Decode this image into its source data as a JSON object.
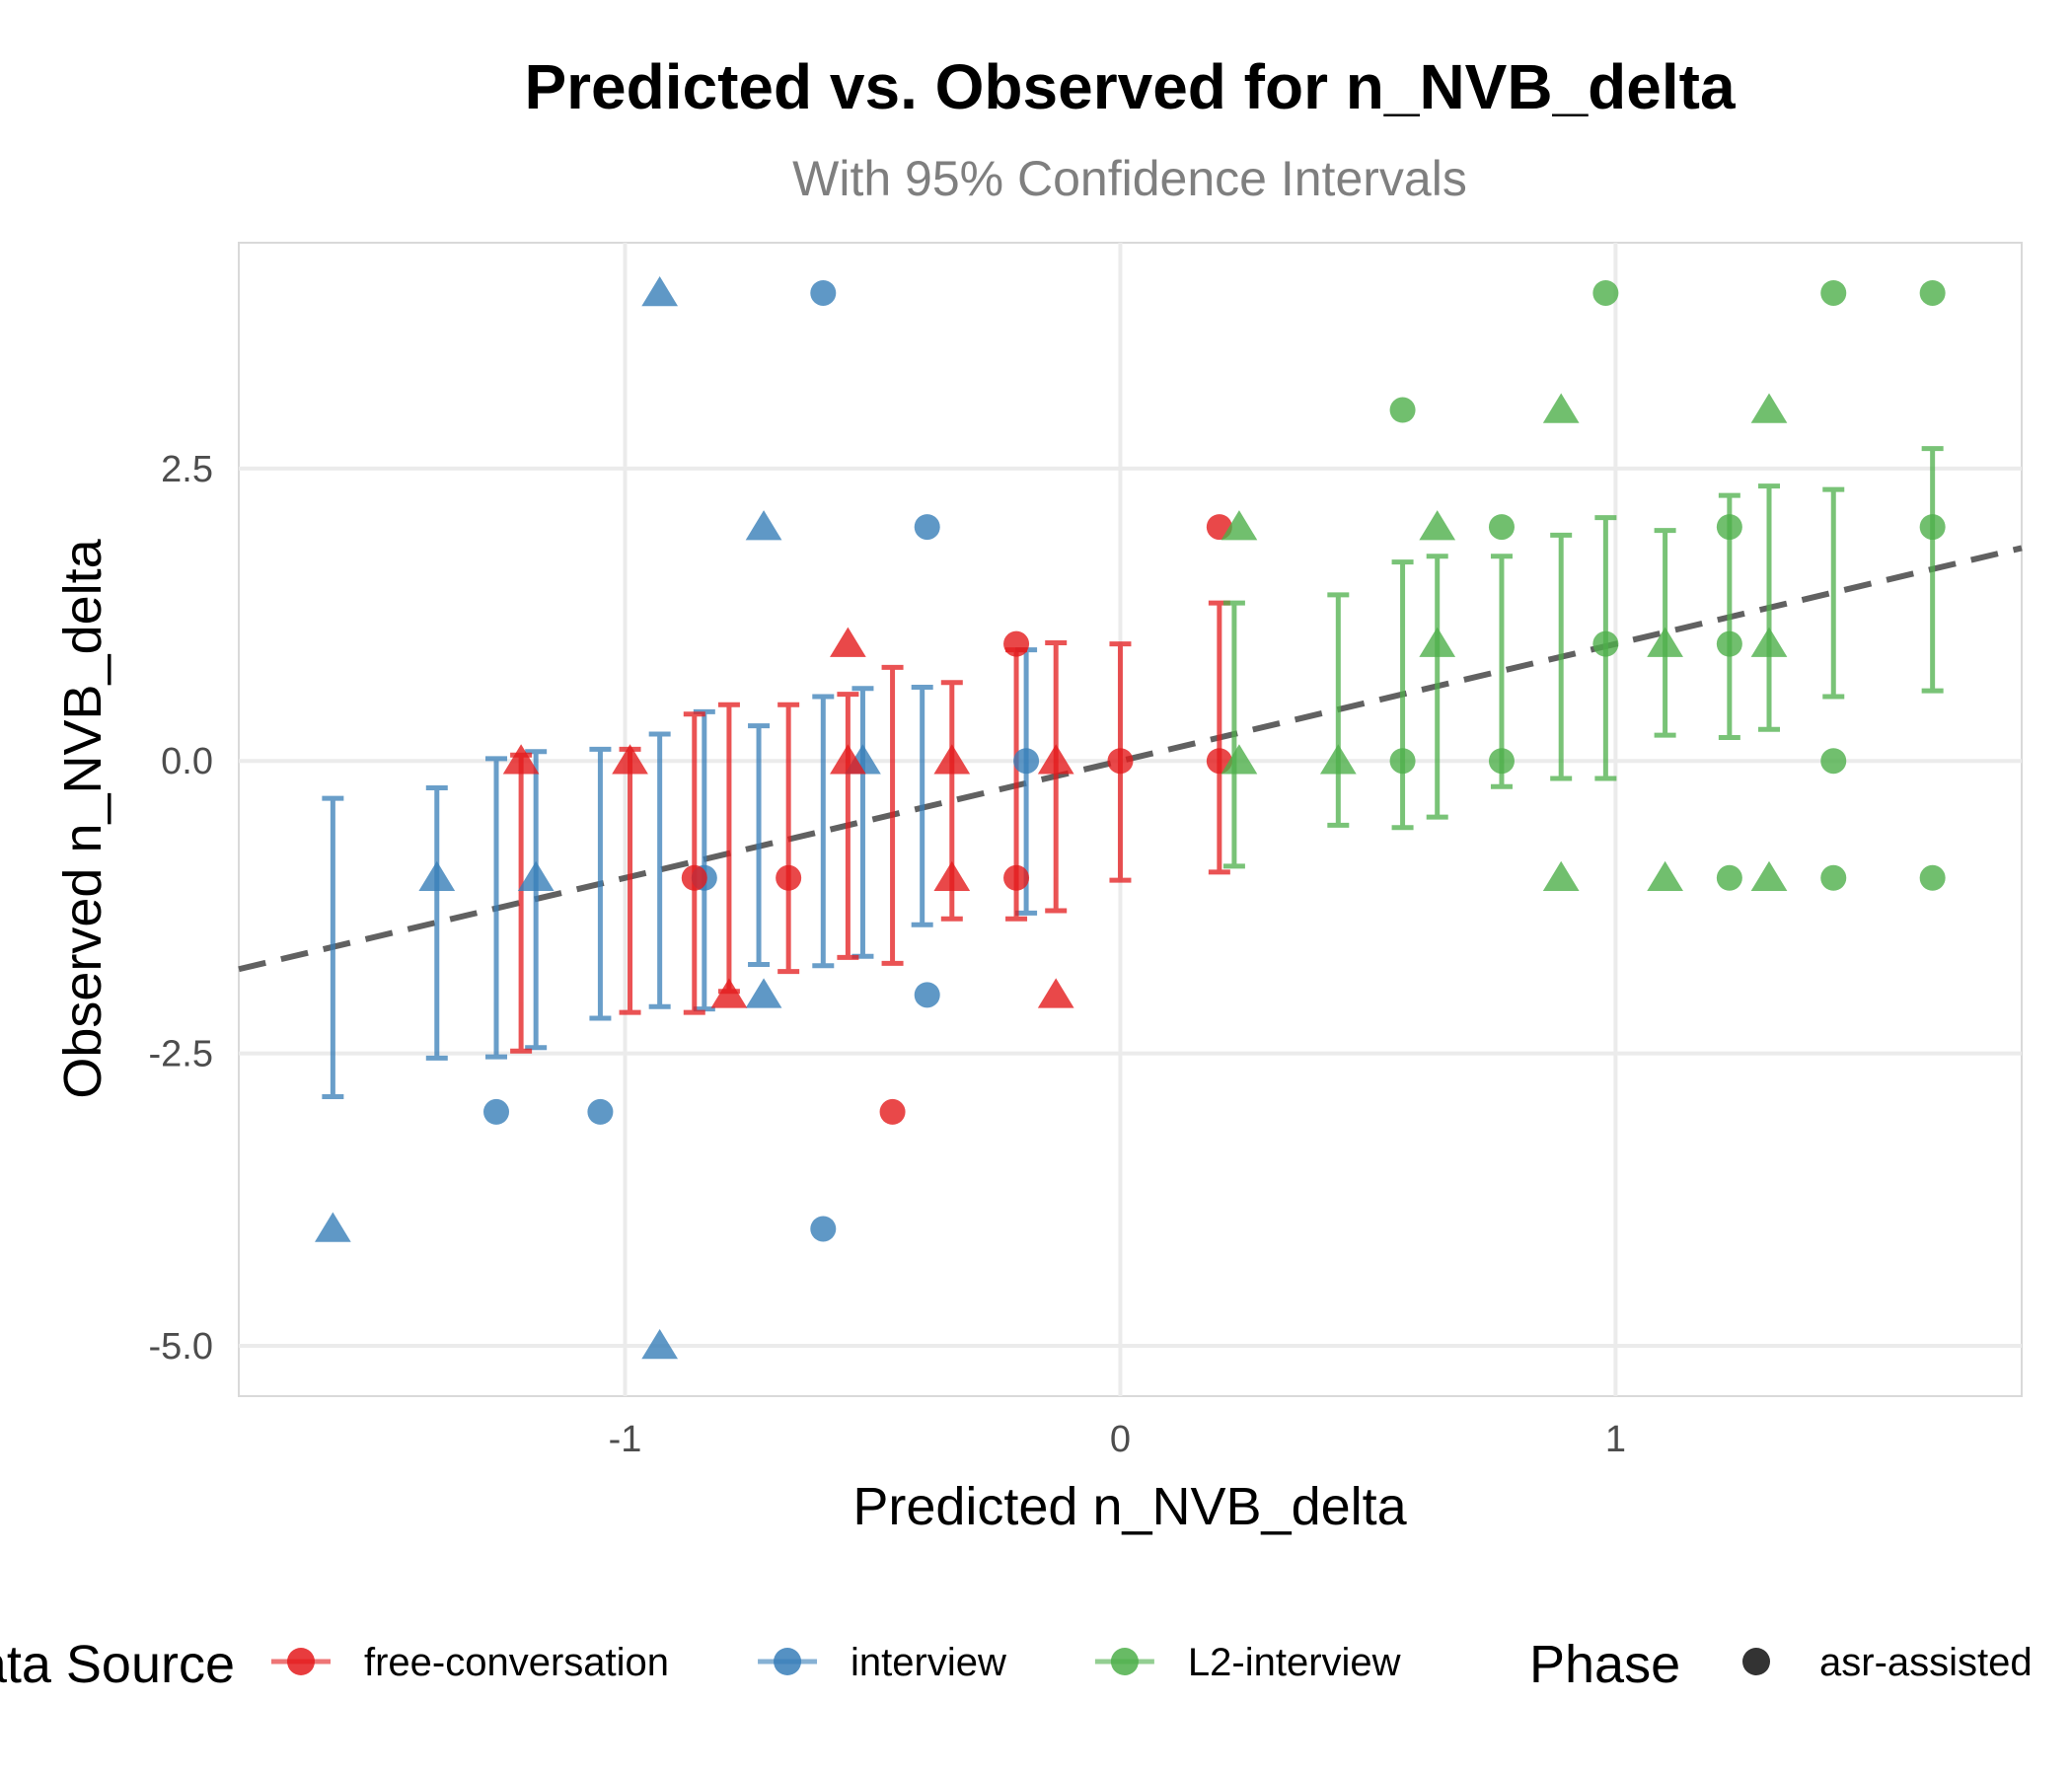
{
  "chart_data": {
    "type": "scatter",
    "title": "Predicted vs. Observed for n_NVB_delta",
    "subtitle": "With 95% Confidence Intervals",
    "xlabel": "Predicted n_NVB_delta",
    "ylabel": "Observed n_NVB_delta",
    "xlim": [
      -1.78,
      1.82
    ],
    "ylim": [
      -5.43,
      4.43
    ],
    "x_ticks": [
      -1,
      0,
      1
    ],
    "x_tick_labels": [
      "-1",
      "0",
      "1"
    ],
    "y_ticks": [
      -5,
      -2.5,
      0,
      2.5
    ],
    "y_tick_labels": [
      "-5.0",
      "-2.5",
      "0.0",
      "2.5"
    ],
    "grid": true,
    "reference_line": {
      "style": "dashed",
      "color": "#595959",
      "intercept": 0,
      "slope": 1
    },
    "legend": {
      "position": "bottom",
      "source_title": "Data Source",
      "phase_title": "Phase",
      "sources": [
        {
          "label": "free-conversation",
          "color": "#E41A1C"
        },
        {
          "label": "interview",
          "color": "#377EB8"
        },
        {
          "label": "L2-interview",
          "color": "#4DAF4A"
        }
      ],
      "phases": [
        {
          "label": "asr-assisted",
          "shape": "circle"
        }
      ]
    },
    "error_bars": [
      {
        "source": "interview",
        "x": -1.59,
        "low": -2.87,
        "high": -0.32
      },
      {
        "source": "interview",
        "x": -1.38,
        "low": -2.54,
        "high": -0.23
      },
      {
        "source": "interview",
        "x": -1.26,
        "low": -2.53,
        "high": 0.02
      },
      {
        "source": "interview",
        "x": -1.18,
        "low": -2.45,
        "high": 0.08
      },
      {
        "source": "interview",
        "x": -1.05,
        "low": -2.2,
        "high": 0.1
      },
      {
        "source": "interview",
        "x": -0.93,
        "low": -2.1,
        "high": 0.23
      },
      {
        "source": "interview",
        "x": -0.84,
        "low": -2.12,
        "high": 0.42
      },
      {
        "source": "interview",
        "x": -0.73,
        "low": -1.74,
        "high": 0.3
      },
      {
        "source": "interview",
        "x": -0.6,
        "low": -1.75,
        "high": 0.55
      },
      {
        "source": "interview",
        "x": -0.52,
        "low": -1.67,
        "high": 0.62
      },
      {
        "source": "interview",
        "x": -0.4,
        "low": -1.4,
        "high": 0.63
      },
      {
        "source": "interview",
        "x": -0.19,
        "low": -1.3,
        "high": 0.95
      },
      {
        "source": "free-conversation",
        "x": -1.21,
        "low": -2.48,
        "high": 0.05
      },
      {
        "source": "free-conversation",
        "x": -0.99,
        "low": -2.15,
        "high": 0.1
      },
      {
        "source": "free-conversation",
        "x": -0.86,
        "low": -2.15,
        "high": 0.4
      },
      {
        "source": "free-conversation",
        "x": -0.79,
        "low": -1.97,
        "high": 0.48
      },
      {
        "source": "free-conversation",
        "x": -0.67,
        "low": -1.8,
        "high": 0.48
      },
      {
        "source": "free-conversation",
        "x": -0.55,
        "low": -1.68,
        "high": 0.57
      },
      {
        "source": "free-conversation",
        "x": -0.46,
        "low": -1.73,
        "high": 0.8
      },
      {
        "source": "free-conversation",
        "x": -0.34,
        "low": -1.35,
        "high": 0.67
      },
      {
        "source": "free-conversation",
        "x": -0.21,
        "low": -1.35,
        "high": 0.95
      },
      {
        "source": "free-conversation",
        "x": -0.13,
        "low": -1.28,
        "high": 1.01
      },
      {
        "source": "free-conversation",
        "x": 0.0,
        "low": -1.02,
        "high": 1.0
      },
      {
        "source": "free-conversation",
        "x": 0.2,
        "low": -0.95,
        "high": 1.35
      },
      {
        "source": "L2-interview",
        "x": 0.23,
        "low": -0.9,
        "high": 1.35
      },
      {
        "source": "L2-interview",
        "x": 0.44,
        "low": -0.55,
        "high": 1.42
      },
      {
        "source": "L2-interview",
        "x": 0.57,
        "low": -0.57,
        "high": 1.7
      },
      {
        "source": "L2-interview",
        "x": 0.64,
        "low": -0.48,
        "high": 1.75
      },
      {
        "source": "L2-interview",
        "x": 0.77,
        "low": -0.22,
        "high": 1.75
      },
      {
        "source": "L2-interview",
        "x": 0.89,
        "low": -0.15,
        "high": 1.93
      },
      {
        "source": "L2-interview",
        "x": 0.98,
        "low": -0.15,
        "high": 2.08
      },
      {
        "source": "L2-interview",
        "x": 1.1,
        "low": 0.22,
        "high": 1.97
      },
      {
        "source": "L2-interview",
        "x": 1.23,
        "low": 0.2,
        "high": 2.27
      },
      {
        "source": "L2-interview",
        "x": 1.31,
        "low": 0.27,
        "high": 2.35
      },
      {
        "source": "L2-interview",
        "x": 1.44,
        "low": 0.55,
        "high": 2.32
      },
      {
        "source": "L2-interview",
        "x": 1.64,
        "low": 0.6,
        "high": 2.67
      }
    ],
    "points": [
      {
        "source": "interview",
        "shape": "triangle",
        "x": -1.59,
        "y": -4
      },
      {
        "source": "interview",
        "shape": "triangle",
        "x": -1.38,
        "y": -1
      },
      {
        "source": "interview",
        "shape": "circle",
        "x": -1.26,
        "y": -3
      },
      {
        "source": "interview",
        "shape": "triangle",
        "x": -1.18,
        "y": -1
      },
      {
        "source": "interview",
        "shape": "circle",
        "x": -1.05,
        "y": -3
      },
      {
        "source": "interview",
        "shape": "triangle",
        "x": -0.93,
        "y": 4
      },
      {
        "source": "interview",
        "shape": "triangle",
        "x": -0.93,
        "y": -5
      },
      {
        "source": "interview",
        "shape": "circle",
        "x": -0.84,
        "y": -1
      },
      {
        "source": "interview",
        "shape": "triangle",
        "x": -0.72,
        "y": 2
      },
      {
        "source": "interview",
        "shape": "triangle",
        "x": -0.72,
        "y": -2
      },
      {
        "source": "interview",
        "shape": "circle",
        "x": -0.6,
        "y": 4
      },
      {
        "source": "interview",
        "shape": "circle",
        "x": -0.6,
        "y": -4
      },
      {
        "source": "interview",
        "shape": "triangle",
        "x": -0.52,
        "y": 0
      },
      {
        "source": "interview",
        "shape": "circle",
        "x": -0.39,
        "y": 2
      },
      {
        "source": "interview",
        "shape": "circle",
        "x": -0.39,
        "y": -2
      },
      {
        "source": "interview",
        "shape": "circle",
        "x": -0.19,
        "y": 0
      },
      {
        "source": "free-conversation",
        "shape": "triangle",
        "x": -1.21,
        "y": 0
      },
      {
        "source": "free-conversation",
        "shape": "triangle",
        "x": -0.99,
        "y": 0
      },
      {
        "source": "free-conversation",
        "shape": "circle",
        "x": -0.86,
        "y": -1
      },
      {
        "source": "free-conversation",
        "shape": "triangle",
        "x": -0.79,
        "y": -2
      },
      {
        "source": "free-conversation",
        "shape": "circle",
        "x": -0.67,
        "y": -1
      },
      {
        "source": "free-conversation",
        "shape": "triangle",
        "x": -0.55,
        "y": 1
      },
      {
        "source": "free-conversation",
        "shape": "triangle",
        "x": -0.55,
        "y": 0
      },
      {
        "source": "free-conversation",
        "shape": "circle",
        "x": -0.46,
        "y": -3
      },
      {
        "source": "free-conversation",
        "shape": "triangle",
        "x": -0.34,
        "y": 0
      },
      {
        "source": "free-conversation",
        "shape": "triangle",
        "x": -0.34,
        "y": -1
      },
      {
        "source": "free-conversation",
        "shape": "circle",
        "x": -0.21,
        "y": 1
      },
      {
        "source": "free-conversation",
        "shape": "circle",
        "x": -0.21,
        "y": -1
      },
      {
        "source": "free-conversation",
        "shape": "triangle",
        "x": -0.13,
        "y": 0
      },
      {
        "source": "free-conversation",
        "shape": "triangle",
        "x": -0.13,
        "y": -2
      },
      {
        "source": "free-conversation",
        "shape": "circle",
        "x": 0.0,
        "y": 0
      },
      {
        "source": "free-conversation",
        "shape": "circle",
        "x": 0.2,
        "y": 2
      },
      {
        "source": "free-conversation",
        "shape": "circle",
        "x": 0.2,
        "y": 0
      },
      {
        "source": "L2-interview",
        "shape": "triangle",
        "x": 0.24,
        "y": 2
      },
      {
        "source": "L2-interview",
        "shape": "triangle",
        "x": 0.24,
        "y": 0
      },
      {
        "source": "L2-interview",
        "shape": "triangle",
        "x": 0.44,
        "y": 0
      },
      {
        "source": "L2-interview",
        "shape": "circle",
        "x": 0.57,
        "y": 3
      },
      {
        "source": "L2-interview",
        "shape": "circle",
        "x": 0.57,
        "y": 0
      },
      {
        "source": "L2-interview",
        "shape": "triangle",
        "x": 0.64,
        "y": 2
      },
      {
        "source": "L2-interview",
        "shape": "triangle",
        "x": 0.64,
        "y": 1
      },
      {
        "source": "L2-interview",
        "shape": "circle",
        "x": 0.77,
        "y": 2
      },
      {
        "source": "L2-interview",
        "shape": "circle",
        "x": 0.77,
        "y": 0
      },
      {
        "source": "L2-interview",
        "shape": "triangle",
        "x": 0.89,
        "y": 3
      },
      {
        "source": "L2-interview",
        "shape": "triangle",
        "x": 0.89,
        "y": -1
      },
      {
        "source": "L2-interview",
        "shape": "circle",
        "x": 0.98,
        "y": 4
      },
      {
        "source": "L2-interview",
        "shape": "circle",
        "x": 0.98,
        "y": 1
      },
      {
        "source": "L2-interview",
        "shape": "triangle",
        "x": 1.1,
        "y": 1
      },
      {
        "source": "L2-interview",
        "shape": "triangle",
        "x": 1.1,
        "y": -1
      },
      {
        "source": "L2-interview",
        "shape": "circle",
        "x": 1.23,
        "y": 2
      },
      {
        "source": "L2-interview",
        "shape": "circle",
        "x": 1.23,
        "y": 1
      },
      {
        "source": "L2-interview",
        "shape": "circle",
        "x": 1.23,
        "y": -1
      },
      {
        "source": "L2-interview",
        "shape": "triangle",
        "x": 1.31,
        "y": 3
      },
      {
        "source": "L2-interview",
        "shape": "triangle",
        "x": 1.31,
        "y": 1
      },
      {
        "source": "L2-interview",
        "shape": "triangle",
        "x": 1.31,
        "y": -1
      },
      {
        "source": "L2-interview",
        "shape": "circle",
        "x": 1.44,
        "y": 4
      },
      {
        "source": "L2-interview",
        "shape": "circle",
        "x": 1.44,
        "y": 0
      },
      {
        "source": "L2-interview",
        "shape": "circle",
        "x": 1.44,
        "y": -1
      },
      {
        "source": "L2-interview",
        "shape": "circle",
        "x": 1.64,
        "y": 4
      },
      {
        "source": "L2-interview",
        "shape": "circle",
        "x": 1.64,
        "y": 2
      },
      {
        "source": "L2-interview",
        "shape": "circle",
        "x": 1.64,
        "y": -1
      }
    ]
  }
}
